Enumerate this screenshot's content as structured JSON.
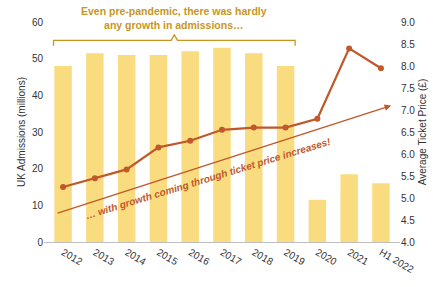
{
  "chart_data": {
    "type": "bar",
    "categories": [
      "2012",
      "2013",
      "2014",
      "2015",
      "2016",
      "2017",
      "2018",
      "2019",
      "2020",
      "2021",
      "H1 2022"
    ],
    "series": [
      {
        "name": "UK Admissions (millions)",
        "type": "bar",
        "color": "#F9DC7F",
        "values": [
          48,
          51.5,
          51,
          51,
          52,
          53,
          51.5,
          48,
          11.5,
          18.5,
          16
        ]
      },
      {
        "name": "Average Ticket Price (£)",
        "type": "line",
        "axis": "y2",
        "color": "#C0582B",
        "marker": "circle",
        "line_style": "solid",
        "values": [
          5.25,
          5.45,
          5.65,
          6.15,
          6.3,
          6.55,
          6.6,
          6.6,
          6.8,
          8.4,
          7.95
        ]
      }
    ],
    "ylim": [
      0,
      60
    ],
    "yticks": [
      0,
      10,
      20,
      30,
      40,
      50,
      60
    ],
    "y2lim": [
      4,
      9
    ],
    "y2ticks": [
      {
        "value": 4,
        "label": "4.0"
      },
      {
        "value": 4.5,
        "label": "4.5"
      },
      {
        "value": 5,
        "label": "5.0"
      },
      {
        "value": 5.5,
        "label": "5.5"
      },
      {
        "value": 6,
        "label": "6.0"
      },
      {
        "value": 6.5,
        "label": "6.5"
      },
      {
        "value": 7,
        "label": "7.0"
      },
      {
        "value": 7.5,
        "label": "7.5"
      },
      {
        "value": 8,
        "label": "8.0"
      },
      {
        "value": 8.5,
        "label": "8.5"
      },
      {
        "value": 9,
        "label": "9.0"
      }
    ],
    "grid": false,
    "annotations": [
      "Even pre-pandemic, there was hardly\nany growth in admissions…",
      "… with growth coming through ticket price increases!"
    ]
  }
}
